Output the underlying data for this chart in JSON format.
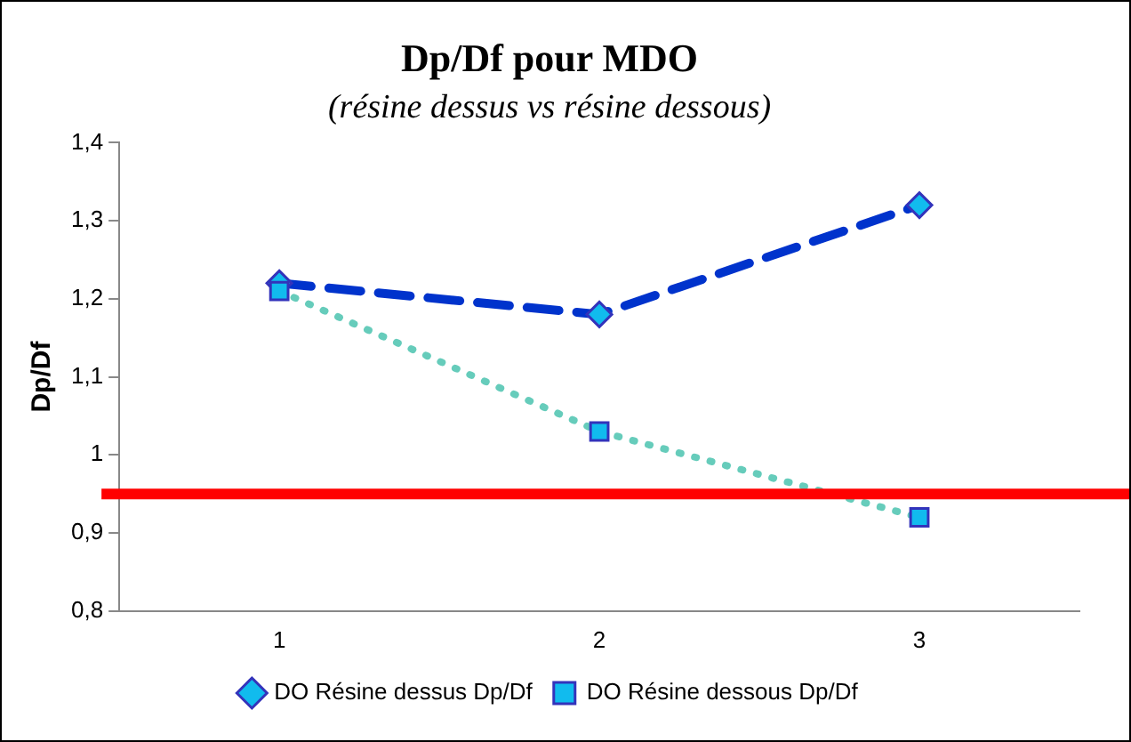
{
  "chart_data": {
    "type": "line",
    "title": "Dp/Df pour MDO",
    "subtitle": "(résine dessus vs résine dessous)",
    "ylabel": "Dp/Df",
    "categories": [
      "1",
      "2",
      "3"
    ],
    "series": [
      {
        "name": "DO Résine dessus Dp/Df",
        "color": "#0033cc",
        "values": [
          1.22,
          1.18,
          1.32
        ],
        "marker": "diamond",
        "line_style": "dashed"
      },
      {
        "name": "DO Résine dessous Dp/Df",
        "color": "#66ccbb",
        "values": [
          1.21,
          1.03,
          0.92
        ],
        "marker": "square",
        "line_style": "dotted"
      }
    ],
    "ylim": [
      0.8,
      1.4
    ],
    "yticks": [
      {
        "value": 0.8,
        "label": "0,8"
      },
      {
        "value": 0.9,
        "label": "0,9"
      },
      1,
      {
        "value": 1.1,
        "label": "1,1"
      },
      {
        "value": 1.2,
        "label": "1,2"
      },
      {
        "value": 1.3,
        "label": "1,3"
      },
      {
        "value": 1.4,
        "label": "1,4"
      }
    ],
    "ref_lines": [
      {
        "axis": "y",
        "value": 0.95,
        "color": "#ff0000"
      }
    ],
    "grid": false,
    "legend": "bottom"
  }
}
